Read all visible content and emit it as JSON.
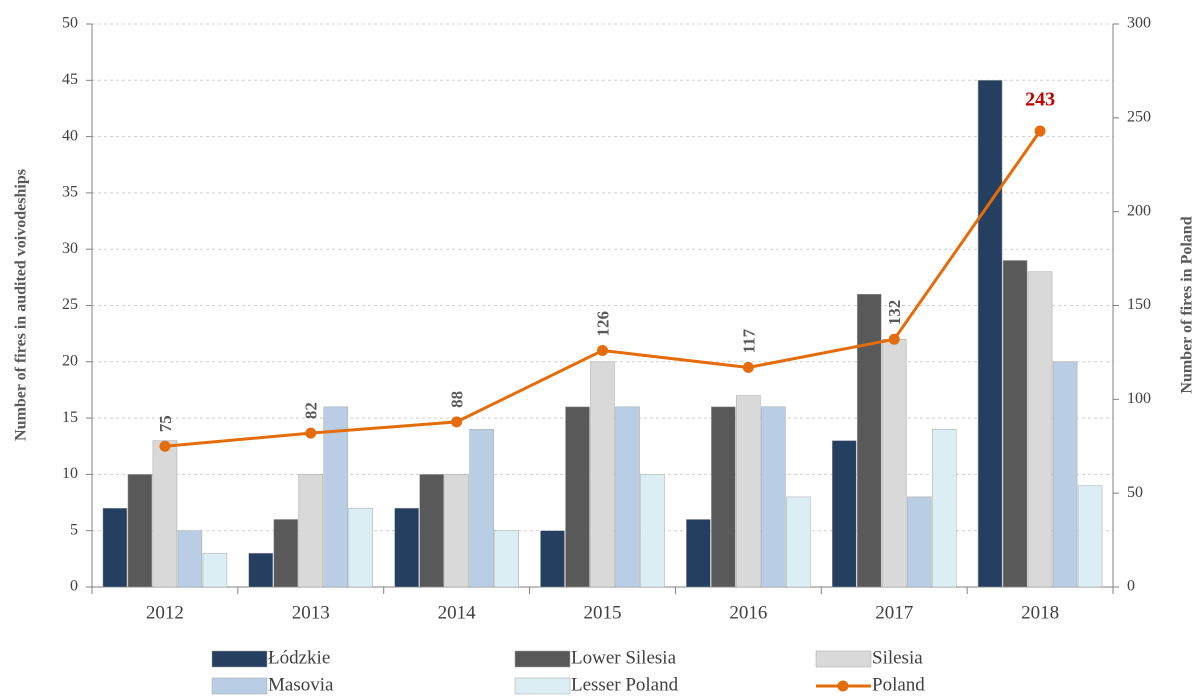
{
  "chart_data": {
    "type": "bar",
    "categories": [
      "2012",
      "2013",
      "2014",
      "2015",
      "2016",
      "2017",
      "2018"
    ],
    "series": [
      {
        "name": "Łódzkie",
        "color": "#243f60",
        "values": [
          7,
          3,
          7,
          5,
          6,
          13,
          45
        ]
      },
      {
        "name": "Lower Silesia",
        "color": "#595959",
        "values": [
          10,
          6,
          10,
          16,
          16,
          26,
          29
        ]
      },
      {
        "name": "Silesia",
        "color": "#d9d9d9",
        "values": [
          13,
          10,
          10,
          20,
          17,
          22,
          28
        ]
      },
      {
        "name": "Masovia",
        "color": "#b9cde5",
        "values": [
          5,
          16,
          14,
          16,
          16,
          8,
          20
        ]
      },
      {
        "name": "Lesser Poland",
        "color": "#dbeef4",
        "values": [
          3,
          7,
          5,
          10,
          8,
          14,
          9
        ]
      },
      {
        "name": "Poland",
        "color": "#e46c0a",
        "type": "line",
        "axis": "y2",
        "values": [
          75,
          82,
          88,
          126,
          117,
          132,
          243
        ]
      }
    ],
    "ylabel": "Number of fires in audited voivodeships",
    "y2label": "Number of fires in Poland",
    "ylim": [
      0,
      50
    ],
    "yticks": [
      0,
      5,
      10,
      15,
      20,
      25,
      30,
      35,
      40,
      45,
      50
    ],
    "y2lim": [
      0,
      300
    ],
    "y2ticks": [
      0,
      50,
      100,
      150,
      200,
      250,
      300
    ],
    "grid": true,
    "legend": "bottom"
  }
}
